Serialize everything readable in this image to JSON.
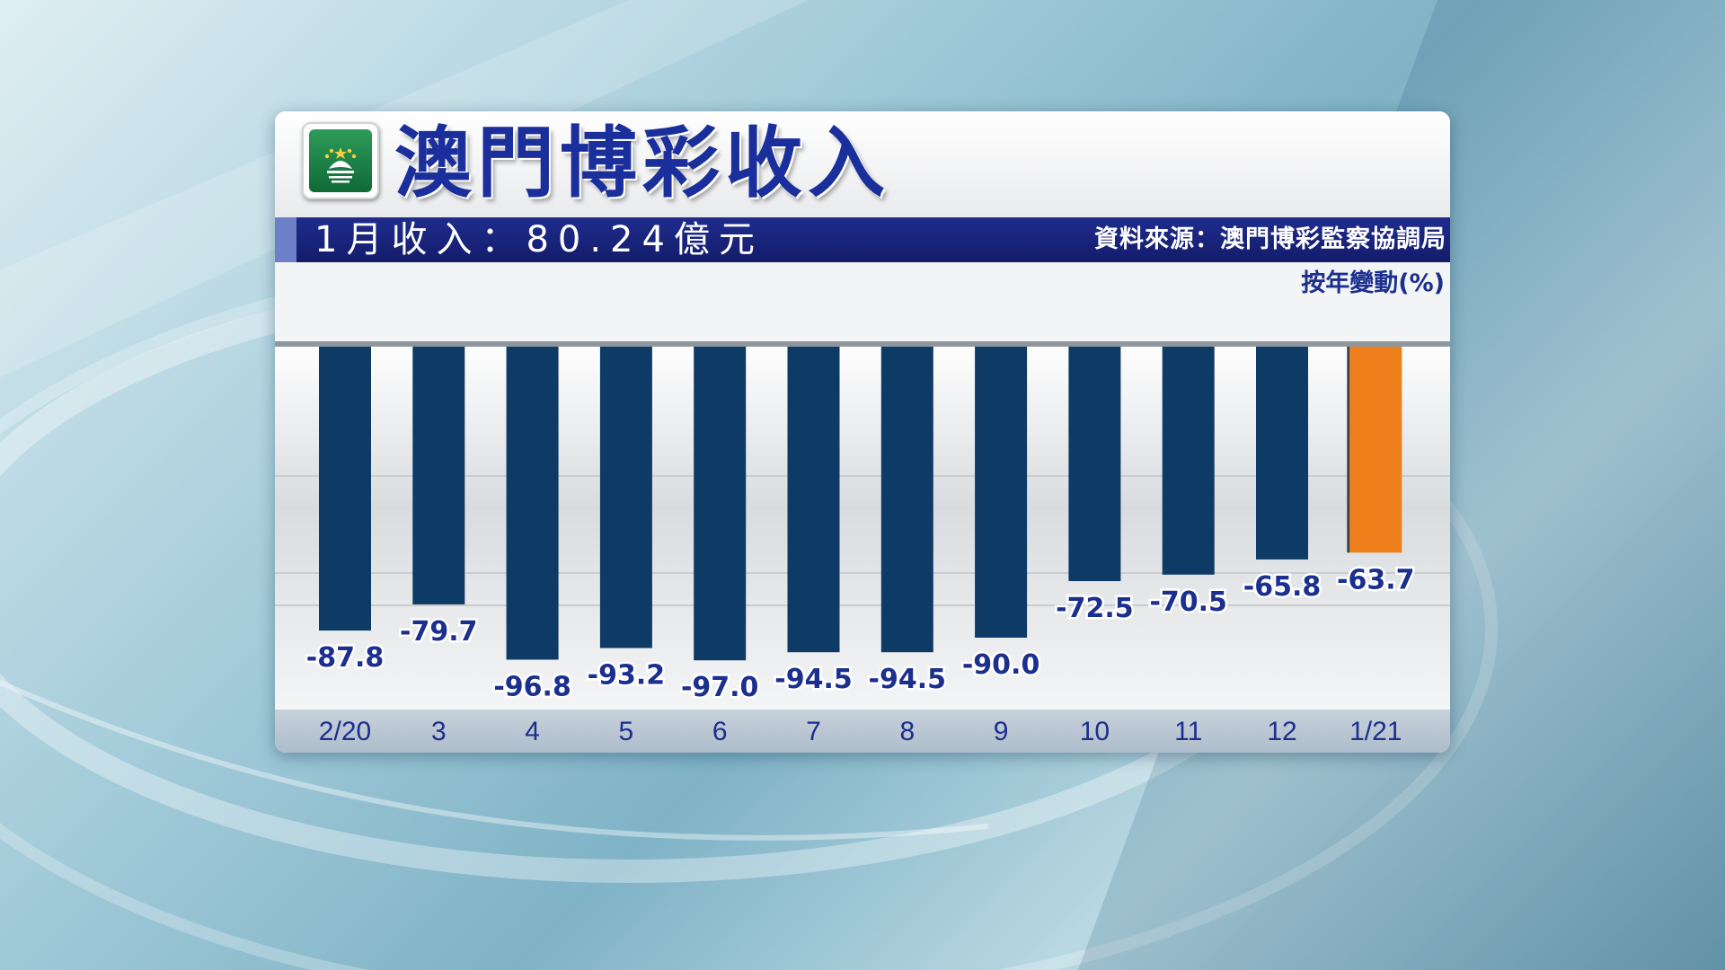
{
  "header": {
    "title": "澳門博彩收入",
    "month_income": "1月收入：80.24億元",
    "source": "資料來源：澳門博彩監察協調局",
    "unit": "按年變動(%)"
  },
  "colors": {
    "bar": "#0e3a66",
    "highlight_bar": "#ee7f1b",
    "title": "#1a2f9c",
    "subbar": "#1a237e",
    "label": "#1b2f8e"
  },
  "chart_data": {
    "type": "bar",
    "title": "澳門博彩收入",
    "ylabel": "按年變動(%)",
    "xlabel": "",
    "categories": [
      "2/20",
      "3",
      "4",
      "5",
      "6",
      "7",
      "8",
      "9",
      "10",
      "11",
      "12",
      "1/21"
    ],
    "values": [
      -87.8,
      -79.7,
      -96.8,
      -93.2,
      -97.0,
      -94.5,
      -94.5,
      -90.0,
      -72.5,
      -70.5,
      -65.8,
      -63.7
    ],
    "value_labels": [
      "-87.8",
      "-79.7",
      "-96.8",
      "-93.2",
      "-97.0",
      "-94.5",
      "-94.5",
      "-90.0",
      "-72.5",
      "-70.5",
      "-65.8",
      "-63.7"
    ],
    "highlight_index": 11,
    "ylim": [
      -100,
      0
    ],
    "grid": true,
    "bars_hang_from_zero_line": true
  }
}
